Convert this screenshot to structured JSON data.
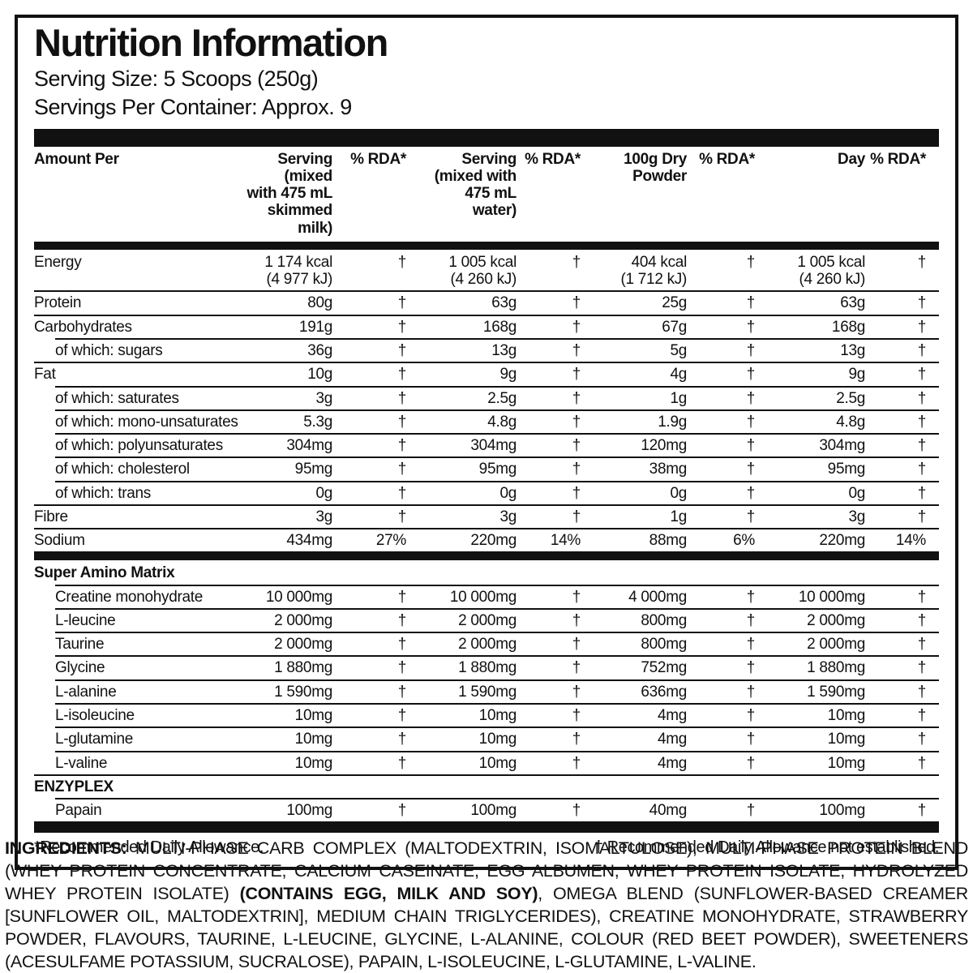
{
  "colors": {
    "ink": "#111111",
    "paper": "#ffffff"
  },
  "panel": {
    "title": "Nutrition Information",
    "serving_size": "Serving Size: 5 Scoops (250g)",
    "servings_per_container": "Servings Per Container: Approx. 9"
  },
  "table": {
    "headers": [
      "Amount Per",
      "Serving (mixed\nwith 475 mL\nskimmed milk)",
      "% RDA*",
      "Serving\n(mixed with\n475 mL water)",
      "% RDA*",
      "100g Dry\nPowder",
      "% RDA*",
      "Day",
      "% RDA*"
    ],
    "groups": [
      {
        "rows": [
          {
            "label": "Energy",
            "indent": false,
            "section": false,
            "values": [
              "1 174 kcal\n(4 977 kJ)",
              "†",
              "1 005 kcal\n(4 260 kJ)",
              "†",
              "404 kcal\n(1 712 kJ)",
              "†",
              "1 005 kcal\n(4 260 kJ)",
              "†"
            ]
          },
          {
            "label": "Protein",
            "indent": false,
            "section": false,
            "values": [
              "80g",
              "†",
              "63g",
              "†",
              "25g",
              "†",
              "63g",
              "†"
            ]
          },
          {
            "label": "Carbohydrates",
            "indent": false,
            "section": false,
            "values": [
              "191g",
              "†",
              "168g",
              "†",
              "67g",
              "†",
              "168g",
              "†"
            ]
          },
          {
            "label": "of which: sugars",
            "indent": true,
            "section": false,
            "values": [
              "36g",
              "†",
              "13g",
              "†",
              "5g",
              "†",
              "13g",
              "†"
            ]
          },
          {
            "label": "Fat",
            "indent": false,
            "section": false,
            "values": [
              "10g",
              "†",
              "9g",
              "†",
              "4g",
              "†",
              "9g",
              "†"
            ]
          },
          {
            "label": "of which: saturates",
            "indent": true,
            "section": false,
            "values": [
              "3g",
              "†",
              "2.5g",
              "†",
              "1g",
              "†",
              "2.5g",
              "†"
            ]
          },
          {
            "label": "of which: mono-unsaturates",
            "indent": true,
            "section": false,
            "values": [
              "5.3g",
              "†",
              "4.8g",
              "†",
              "1.9g",
              "†",
              "4.8g",
              "†"
            ]
          },
          {
            "label": "of which: polyunsaturates",
            "indent": true,
            "section": false,
            "values": [
              "304mg",
              "†",
              "304mg",
              "†",
              "120mg",
              "†",
              "304mg",
              "†"
            ]
          },
          {
            "label": "of which: cholesterol",
            "indent": true,
            "section": false,
            "values": [
              "95mg",
              "†",
              "95mg",
              "†",
              "38mg",
              "†",
              "95mg",
              "†"
            ]
          },
          {
            "label": "of which: trans",
            "indent": true,
            "section": false,
            "values": [
              "0g",
              "†",
              "0g",
              "†",
              "0g",
              "†",
              "0g",
              "†"
            ]
          },
          {
            "label": "Fibre",
            "indent": false,
            "section": false,
            "values": [
              "3g",
              "†",
              "3g",
              "†",
              "1g",
              "†",
              "3g",
              "†"
            ]
          },
          {
            "label": "Sodium",
            "indent": false,
            "section": false,
            "values": [
              "434mg",
              "27%",
              "220mg",
              "14%",
              "88mg",
              "6%",
              "220mg",
              "14%"
            ]
          }
        ]
      },
      {
        "rows": [
          {
            "label": "Super Amino Matrix",
            "indent": false,
            "section": true,
            "values": []
          },
          {
            "label": "Creatine monohydrate",
            "indent": true,
            "section": false,
            "values": [
              "10 000mg",
              "†",
              "10 000mg",
              "†",
              "4 000mg",
              "†",
              "10 000mg",
              "†"
            ]
          },
          {
            "label": "L-leucine",
            "indent": true,
            "section": false,
            "values": [
              "2 000mg",
              "†",
              "2 000mg",
              "†",
              "800mg",
              "†",
              "2 000mg",
              "†"
            ]
          },
          {
            "label": "Taurine",
            "indent": true,
            "section": false,
            "values": [
              "2 000mg",
              "†",
              "2 000mg",
              "†",
              "800mg",
              "†",
              "2 000mg",
              "†"
            ]
          },
          {
            "label": "Glycine",
            "indent": true,
            "section": false,
            "values": [
              "1 880mg",
              "†",
              "1 880mg",
              "†",
              "752mg",
              "†",
              "1 880mg",
              "†"
            ]
          },
          {
            "label": "L-alanine",
            "indent": true,
            "section": false,
            "values": [
              "1 590mg",
              "†",
              "1 590mg",
              "†",
              "636mg",
              "†",
              "1 590mg",
              "†"
            ]
          },
          {
            "label": "L-isoleucine",
            "indent": true,
            "section": false,
            "values": [
              "10mg",
              "†",
              "10mg",
              "†",
              "4mg",
              "†",
              "10mg",
              "†"
            ]
          },
          {
            "label": "L-glutamine",
            "indent": true,
            "section": false,
            "values": [
              "10mg",
              "†",
              "10mg",
              "†",
              "4mg",
              "†",
              "10mg",
              "†"
            ]
          },
          {
            "label": "L-valine",
            "indent": true,
            "section": false,
            "values": [
              "10mg",
              "†",
              "10mg",
              "†",
              "4mg",
              "†",
              "10mg",
              "†"
            ]
          },
          {
            "label": "ENZYPLEX",
            "indent": false,
            "section": true,
            "values": []
          },
          {
            "label": "Papain",
            "indent": true,
            "section": false,
            "values": [
              "100mg",
              "†",
              "100mg",
              "†",
              "40mg",
              "†",
              "100mg",
              "†"
            ]
          }
        ]
      }
    ]
  },
  "footnotes": {
    "left": "*Recommended Daily Allowance.",
    "right": "† Recommended Daily Allowance not established."
  },
  "ingredients": {
    "segments": [
      {
        "text": "INGREDIENTS: ",
        "bold": true
      },
      {
        "text": "MULTI-PHASE CARB COMPLEX (MALTODEXTRIN, ISOMALTULOSE), MULTI-PHASE PROTEIN BLEND (WHEY PROTEIN CONCENTRATE, CALCIUM CASEINATE, EGG ALBUMEN, WHEY PROTEIN ISOLATE, HYDROLYZED WHEY PROTEIN ISOLATE) ",
        "bold": false
      },
      {
        "text": "(CONTAINS EGG, MILK AND SOY)",
        "bold": true
      },
      {
        "text": ", OMEGA BLEND (SUNFLOWER-BASED CREAMER [SUNFLOWER OIL, MALTODEXTRIN], MEDIUM CHAIN TRIGLYCERIDES), CREATINE MONOHYDRATE, STRAWBERRY POWDER, FLAVOURS, TAURINE, L-LEUCINE, GLYCINE, L-ALANINE, COLOUR (RED BEET POWDER), SWEETENERS (ACESULFAME POTASSIUM, SUCRALOSE), PAPAIN, L-ISOLEUCINE, L-GLUTAMINE, L-VALINE.",
        "bold": false
      }
    ]
  }
}
